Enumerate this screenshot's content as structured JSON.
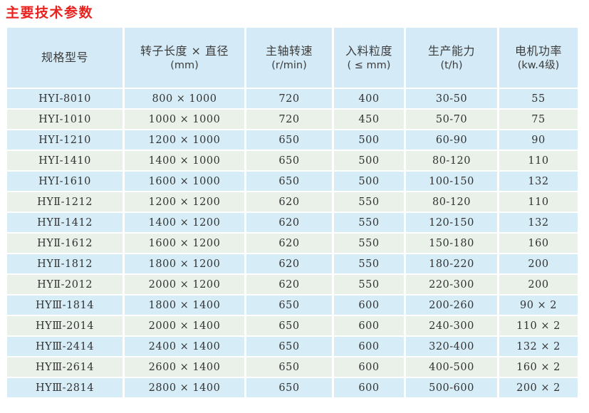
{
  "page": {
    "title": "主要技术参数"
  },
  "colors": {
    "title_red": "#e8231f",
    "stripe_blue": "#d6edf8",
    "stripe_green": "#e9f1e8",
    "header_blue": "#d4ebf7",
    "text_dark": "#3c3c3c"
  },
  "table": {
    "columns": [
      {
        "label": "规格型号",
        "unit": ""
      },
      {
        "label": "转子长度 × 直径",
        "unit": "(mm)"
      },
      {
        "label": "主轴转速",
        "unit": "(r/min)"
      },
      {
        "label": "入料粒度",
        "unit": "( ≤ mm)"
      },
      {
        "label": "生产能力",
        "unit": "(t/h)"
      },
      {
        "label": "电机功率",
        "unit": "(kw.4级)"
      }
    ],
    "rows": [
      [
        "HYⅠ-8010",
        "800 × 1000",
        "720",
        "400",
        "30-50",
        "55"
      ],
      [
        "HYⅠ-1010",
        "1000 × 1000",
        "720",
        "450",
        "50-70",
        "75"
      ],
      [
        "HYⅠ-1210",
        "1200 × 1000",
        "650",
        "500",
        "60-90",
        "90"
      ],
      [
        "HYⅠ-1410",
        "1400 × 1000",
        "650",
        "500",
        "80-120",
        "110"
      ],
      [
        "HYⅠ-1610",
        "1600 × 1000",
        "650",
        "500",
        "100-150",
        "132"
      ],
      [
        "HYⅡ-1212",
        "1200 × 1200",
        "620",
        "550",
        "80-120",
        "110"
      ],
      [
        "HYⅡ-1412",
        "1400 × 1200",
        "620",
        "550",
        "120-150",
        "132"
      ],
      [
        "HYⅡ-1612",
        "1600 × 1200",
        "620",
        "550",
        "150-180",
        "160"
      ],
      [
        "HYⅡ-1812",
        "1800 × 1200",
        "620",
        "550",
        "180-220",
        "200"
      ],
      [
        "HYⅡ-2012",
        "2000 × 1200",
        "620",
        "550",
        "220-300",
        "200"
      ],
      [
        "HYⅢ-1814",
        "1800 × 1400",
        "650",
        "600",
        "200-260",
        "90 × 2"
      ],
      [
        "HYⅢ-2014",
        "2000 × 1400",
        "650",
        "600",
        "240-300",
        "110 × 2"
      ],
      [
        "HYⅢ-2414",
        "2400 × 1400",
        "650",
        "600",
        "320-400",
        "132 × 2"
      ],
      [
        "HYⅢ-2614",
        "2600 × 1400",
        "650",
        "600",
        "400-500",
        "160 × 2"
      ],
      [
        "HYⅢ-2814",
        "2800 × 1400",
        "650",
        "600",
        "500-600",
        "200 × 2"
      ]
    ]
  }
}
